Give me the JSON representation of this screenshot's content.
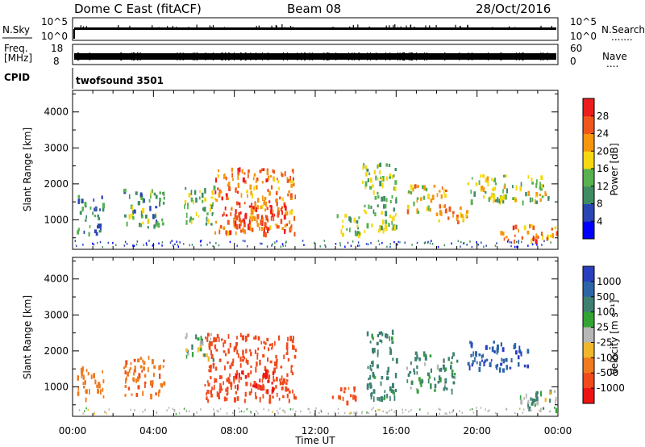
{
  "header": {
    "station": "Dome C East (fitACF)",
    "beam": "Beam 08",
    "date": "28/Oct/2016"
  },
  "rows": {
    "nsky_label": "N.Sky",
    "nsky_ticks": [
      "10^5",
      "10^0"
    ],
    "nsearch_label": "N.Search",
    "nsearch_dots": ".......",
    "freq_label_1": "Freq.",
    "freq_label_2": "[MHz]",
    "freq_ticks": [
      "18",
      "8"
    ],
    "nave_label": "Nave",
    "nave_dots": "....",
    "nave_ticks": [
      "60",
      "0"
    ],
    "cpid_label": "CPID",
    "cpid_value": "twofsound 3501"
  },
  "axes": {
    "ylabel": "Slant Range [km]",
    "yticks": [
      "4000",
      "3000",
      "2000",
      "1000"
    ],
    "xticks": [
      "00:00",
      "04:00",
      "08:00",
      "12:00",
      "16:00",
      "20:00",
      "00:00"
    ],
    "xlabel": "Time UT"
  },
  "colorbars": {
    "power": {
      "label": "Power [dB]",
      "ticks": [
        "28",
        "24",
        "20",
        "16",
        "12",
        "8",
        "4"
      ],
      "colors": [
        "#0000ff",
        "#2a45b4",
        "#3f8c63",
        "#57b14f",
        "#f5d80f",
        "#f5960d",
        "#f0561b",
        "#ee1d1d"
      ]
    },
    "velocity": {
      "label": "Velocity [m s⁻¹]",
      "ticks": [
        "1000",
        "500",
        "100",
        "25",
        "-25",
        "-100",
        "-500",
        "-1000"
      ],
      "colors": [
        "#2a3fbf",
        "#2d65a6",
        "#3d8071",
        "#33a334",
        "#b7b7b7",
        "#f0b72c",
        "#f07a1d",
        "#f04a1d",
        "#ee1313"
      ]
    }
  },
  "chart_data": [
    {
      "type": "heatmap",
      "title": "Power",
      "xlabel": "Time UT",
      "ylabel": "Slant Range [km]",
      "xlim": [
        0,
        24
      ],
      "ylim": [
        180,
        4600
      ],
      "colorbar_label": "Power [dB]",
      "colorbar_range": [
        0,
        32
      ],
      "scatter_regions": [
        {
          "t": [
            0.2,
            1.5
          ],
          "r": [
            600,
            1700
          ],
          "level": 10
        },
        {
          "t": [
            2.5,
            4.5
          ],
          "r": [
            800,
            1900
          ],
          "level": 12
        },
        {
          "t": [
            5.5,
            7.0
          ],
          "r": [
            900,
            2000
          ],
          "level": 14
        },
        {
          "t": [
            7.0,
            11.0
          ],
          "r": [
            650,
            2500
          ],
          "level": 24
        },
        {
          "t": [
            8.0,
            10.5
          ],
          "r": [
            800,
            1600
          ],
          "level": 28
        },
        {
          "t": [
            12.8,
            14.2
          ],
          "r": [
            600,
            1200
          ],
          "level": 14
        },
        {
          "t": [
            14.3,
            16.0
          ],
          "r": [
            700,
            2600
          ],
          "level": 14
        },
        {
          "t": [
            16.5,
            18.5
          ],
          "r": [
            1200,
            2000
          ],
          "level": 20
        },
        {
          "t": [
            18.0,
            19.5
          ],
          "r": [
            900,
            1400
          ],
          "level": 24
        },
        {
          "t": [
            19.5,
            23.5
          ],
          "r": [
            1500,
            2300
          ],
          "level": 16
        },
        {
          "t": [
            21.0,
            24.0
          ],
          "r": [
            450,
            900
          ],
          "level": 24
        }
      ]
    },
    {
      "type": "heatmap",
      "title": "Velocity",
      "xlabel": "Time UT",
      "ylabel": "Slant Range [km]",
      "xlim": [
        0,
        24
      ],
      "ylim": [
        180,
        4600
      ],
      "colorbar_label": "Velocity [m s⁻¹]",
      "colorbar_range": [
        -1000,
        1000
      ],
      "scatter_regions": [
        {
          "t": [
            0.2,
            1.5
          ],
          "r": [
            700,
            1600
          ],
          "v": -200
        },
        {
          "t": [
            2.5,
            4.5
          ],
          "r": [
            800,
            1900
          ],
          "v": -250
        },
        {
          "t": [
            5.5,
            7.0
          ],
          "r": [
            1800,
            2500
          ],
          "v": 0
        },
        {
          "t": [
            6.5,
            11.0
          ],
          "r": [
            650,
            2500
          ],
          "v": -500
        },
        {
          "t": [
            8.0,
            10.0
          ],
          "r": [
            900,
            1500
          ],
          "v": -900
        },
        {
          "t": [
            12.8,
            14.0
          ],
          "r": [
            600,
            1100
          ],
          "v": -400
        },
        {
          "t": [
            14.5,
            16.0
          ],
          "r": [
            700,
            2600
          ],
          "v": 150
        },
        {
          "t": [
            16.5,
            19.0
          ],
          "r": [
            900,
            2000
          ],
          "v": 100
        },
        {
          "t": [
            19.5,
            22.5
          ],
          "r": [
            1500,
            2300
          ],
          "v": 700
        },
        {
          "t": [
            22.0,
            24.0
          ],
          "r": [
            400,
            1000
          ],
          "v": 60
        }
      ]
    }
  ]
}
